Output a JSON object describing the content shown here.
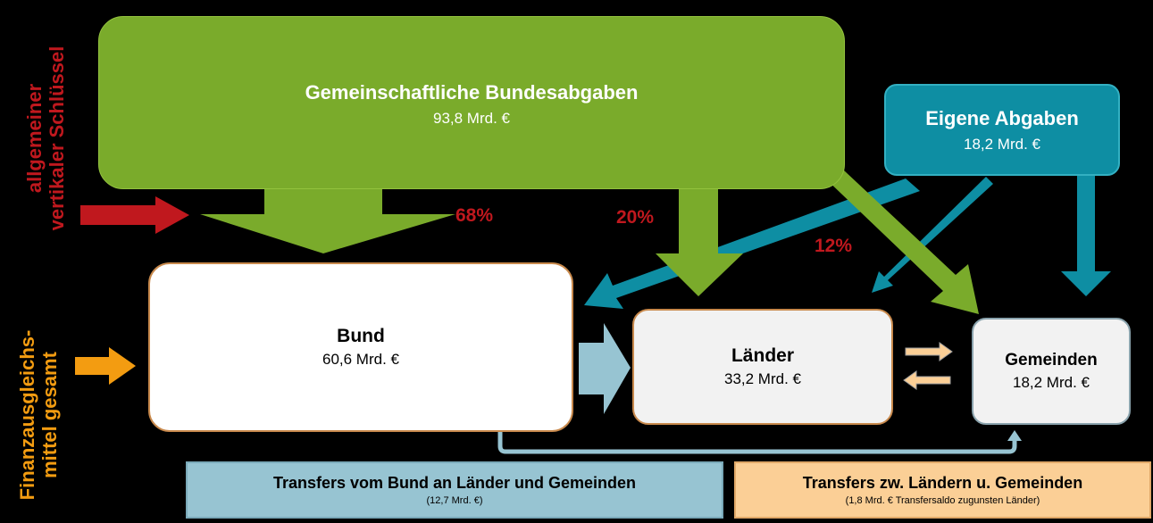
{
  "colors": {
    "green": "#7aab2b",
    "teal": "#0e8ea3",
    "red": "#c0181e",
    "orange": "#f39c11",
    "light_blue": "#97c4d2",
    "peach": "#fbcf96"
  },
  "sources": {
    "gemeinschaftlich": {
      "title": "Gemeinschaftliche Bundesabgaben",
      "amount": "93,8 Mrd. €"
    },
    "eigene": {
      "title": "Eigene Abgaben",
      "amount": "18,2 Mrd. €"
    }
  },
  "recipients": {
    "bund": {
      "title": "Bund",
      "amount": "60,6 Mrd. €"
    },
    "laender": {
      "title": "Länder",
      "amount": "33,2 Mrd. €"
    },
    "gemeinden": {
      "title": "Gemeinden",
      "amount": "18,2 Mrd. €"
    }
  },
  "shares": {
    "bund": "68%",
    "laender": "20%",
    "gemeinden": "12%"
  },
  "side_labels": {
    "schluessel": [
      "allgemeiner",
      "vertikaler Schlüssel"
    ],
    "finanzausgleich": [
      "Finanzausgleichs-",
      "mittel gesamt"
    ]
  },
  "transfers": {
    "bund": {
      "title": "Transfers vom Bund an Länder und Gemeinden",
      "note": "(12,7 Mrd. €)"
    },
    "laender_gemeinden": {
      "title": "Transfers zw. Ländern u. Gemeinden",
      "note": "(1,8 Mrd. € Transfersaldo zugunsten Länder)"
    }
  }
}
